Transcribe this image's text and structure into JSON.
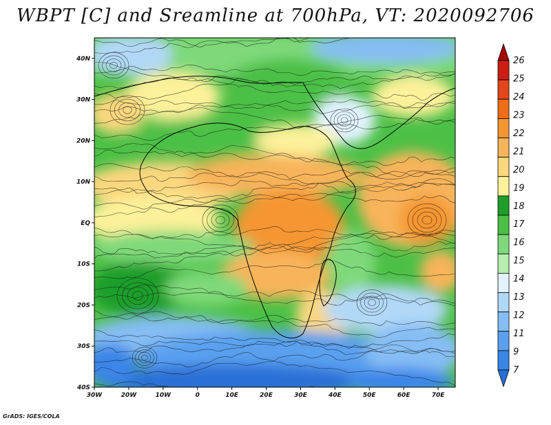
{
  "title": "WBPT [C] and Sreamline at 700hPa, VT: 2020092706",
  "credit": "GrADS: IGES/COLA",
  "map": {
    "lon_range": [
      -30,
      75
    ],
    "lat_range": [
      -40,
      45
    ],
    "x_ticks": [
      "30W",
      "20W",
      "10W",
      "0",
      "10E",
      "20E",
      "30E",
      "40E",
      "50E",
      "60E",
      "70E"
    ],
    "x_tick_values": [
      -30,
      -20,
      -10,
      0,
      10,
      20,
      30,
      40,
      50,
      60,
      70
    ],
    "y_ticks": [
      "40S",
      "30S",
      "20S",
      "10S",
      "EQ",
      "10N",
      "20N",
      "30N",
      "40N"
    ],
    "y_tick_values": [
      -40,
      -30,
      -20,
      -10,
      0,
      10,
      20,
      30,
      40
    ]
  },
  "colorbar": {
    "labels": [
      "7",
      "9",
      "11",
      "12",
      "13",
      "14",
      "15",
      "16",
      "17",
      "18",
      "19",
      "20",
      "21",
      "22",
      "23",
      "24",
      "25",
      "26"
    ],
    "colors": [
      "#2a6fd6",
      "#3a86e8",
      "#5aa0ef",
      "#86bdf4",
      "#b2d8f8",
      "#e2f3ff",
      "#b6eeb0",
      "#7fd97a",
      "#4cc046",
      "#1f9e2a",
      "#fdf19a",
      "#fbd77e",
      "#f8b45a",
      "#f59632",
      "#f06d18",
      "#e2461a",
      "#cc1f14",
      "#a40b0b"
    ]
  }
}
